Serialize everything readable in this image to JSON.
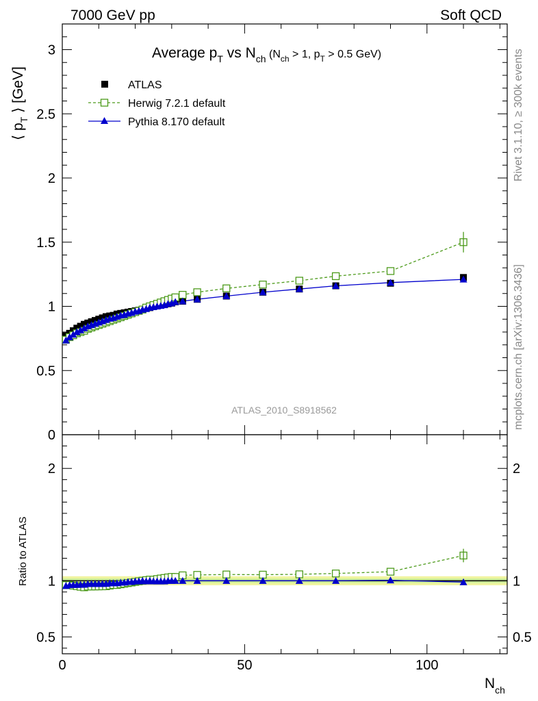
{
  "header": {
    "left": "7000 GeV pp",
    "right": "Soft QCD"
  },
  "side_labels": {
    "rivet": "Rivet 3.1.10, ≥ 300k events",
    "mcplots": "mcplots.cern.ch [arXiv:1306.3436]"
  },
  "chart_data": {
    "type": "scatter",
    "title": {
      "main": "Average p",
      "main_sub": "T",
      "vs": " vs N",
      "vs_sub": "ch",
      "cut_1": " (N",
      "cut_1_sub": "ch",
      "cut_2": " > 1, p",
      "cut_2_sub": "T",
      "cut_3": " > 0.5 GeV)"
    },
    "watermark": "ATLAS_2010_S8918562",
    "xlabel": "N",
    "xlabel_sub": "ch",
    "ylabel": "⟨ p",
    "ylabel_sub": "T",
    "ylabel_tail": " ⟩  [GeV]",
    "ratio_ylabel": "Ratio to ATLAS",
    "xlim": [
      0,
      122
    ],
    "ylim": [
      0,
      3.2
    ],
    "ratio_ylim": [
      0.35,
      2.3
    ],
    "x_ticks": [
      "0",
      "50",
      "100"
    ],
    "y_ticks": [
      "0",
      "0.5",
      "1",
      "1.5",
      "2",
      "2.5",
      "3"
    ],
    "ratio_ticks": [
      "0.5",
      "1",
      "2"
    ],
    "legend_position": "top-left",
    "colors": {
      "atlas": "#000000",
      "herwig": "#4c9a1a",
      "pythia": "#0000cc",
      "band_inner": "#ccee99",
      "band_outer": "#f0f5a0"
    },
    "series": [
      {
        "name": "ATLAS",
        "marker": "filled-square",
        "x": [
          1,
          2,
          3,
          4,
          5,
          6,
          7,
          8,
          9,
          10,
          11,
          12,
          13,
          14,
          15,
          16,
          17,
          18,
          19,
          20,
          21,
          22,
          23,
          24,
          25,
          26,
          27,
          28,
          29,
          30,
          31,
          33,
          37,
          45,
          55,
          65,
          75,
          90,
          110
        ],
        "y": [
          0.77,
          0.79,
          0.81,
          0.83,
          0.845,
          0.86,
          0.87,
          0.88,
          0.89,
          0.9,
          0.91,
          0.92,
          0.925,
          0.93,
          0.94,
          0.945,
          0.95,
          0.955,
          0.96,
          0.965,
          0.97,
          0.975,
          0.985,
          0.99,
          1.0,
          1.005,
          1.01,
          1.015,
          1.02,
          1.025,
          1.035,
          1.04,
          1.055,
          1.08,
          1.11,
          1.135,
          1.16,
          1.18,
          1.225
        ]
      },
      {
        "name": "Herwig 7.2.1 default",
        "marker": "open-square",
        "x": [
          1,
          2,
          3,
          4,
          5,
          6,
          7,
          8,
          9,
          10,
          11,
          12,
          13,
          14,
          15,
          16,
          17,
          18,
          19,
          20,
          21,
          22,
          23,
          24,
          25,
          26,
          27,
          28,
          29,
          30,
          31,
          33,
          37,
          45,
          55,
          65,
          75,
          90,
          110
        ],
        "y": [
          0.74,
          0.76,
          0.775,
          0.79,
          0.8,
          0.81,
          0.825,
          0.835,
          0.845,
          0.855,
          0.865,
          0.875,
          0.885,
          0.895,
          0.905,
          0.915,
          0.925,
          0.935,
          0.945,
          0.955,
          0.965,
          0.975,
          0.99,
          1.0,
          1.01,
          1.02,
          1.03,
          1.04,
          1.05,
          1.06,
          1.07,
          1.09,
          1.11,
          1.14,
          1.17,
          1.2,
          1.235,
          1.275,
          1.5
        ]
      },
      {
        "name": "Pythia 8.170 default",
        "marker": "filled-triangle",
        "x": [
          1,
          2,
          3,
          4,
          5,
          6,
          7,
          8,
          9,
          10,
          11,
          12,
          13,
          14,
          15,
          16,
          17,
          18,
          19,
          20,
          21,
          22,
          23,
          24,
          25,
          26,
          27,
          28,
          29,
          30,
          31,
          33,
          37,
          45,
          55,
          65,
          75,
          90,
          110
        ],
        "y": [
          0.735,
          0.76,
          0.78,
          0.8,
          0.815,
          0.83,
          0.845,
          0.855,
          0.865,
          0.875,
          0.885,
          0.895,
          0.905,
          0.91,
          0.92,
          0.93,
          0.935,
          0.945,
          0.95,
          0.96,
          0.965,
          0.975,
          0.98,
          0.99,
          0.995,
          1.0,
          1.005,
          1.01,
          1.02,
          1.025,
          1.035,
          1.04,
          1.055,
          1.08,
          1.11,
          1.135,
          1.16,
          1.185,
          1.21
        ]
      }
    ]
  }
}
